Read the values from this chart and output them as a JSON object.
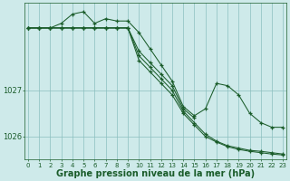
{
  "background_color": "#ceeaea",
  "plot_bg_color": "#ceeaea",
  "grid_color": "#8bbfbf",
  "line_color": "#1a5c2a",
  "x_min": 0,
  "x_max": 23,
  "y_min": 1025.5,
  "y_max": 1028.9,
  "yticks": [
    1026,
    1027
  ],
  "xlabel": "Graphe pression niveau de la mer (hPa)",
  "xlabel_fontsize": 7.0,
  "xtick_fontsize": 5.0,
  "ytick_fontsize": 6.0,
  "series1_x": [
    0,
    1,
    2,
    3,
    4,
    5,
    6,
    7,
    8,
    9,
    10,
    11,
    12,
    13,
    14,
    15,
    16,
    17,
    18,
    19,
    20,
    21,
    22,
    23
  ],
  "series1_y": [
    1028.35,
    1028.35,
    1028.35,
    1028.45,
    1028.65,
    1028.7,
    1028.45,
    1028.55,
    1028.5,
    1028.5,
    1028.25,
    1027.9,
    1027.55,
    1027.2,
    1026.65,
    1026.45,
    1026.6,
    1027.15,
    1027.1,
    1026.9,
    1026.5,
    1026.3,
    1026.2,
    1026.2
  ],
  "series2_x": [
    0,
    1,
    2,
    3,
    4,
    5,
    6,
    7,
    8,
    9,
    10,
    11,
    12,
    13,
    14,
    15
  ],
  "series2_y": [
    1028.35,
    1028.35,
    1028.35,
    1028.35,
    1028.35,
    1028.35,
    1028.35,
    1028.35,
    1028.35,
    1028.35,
    1027.85,
    1027.6,
    1027.35,
    1027.1,
    1026.6,
    1026.4
  ],
  "series3_x": [
    0,
    1,
    2,
    3,
    4,
    5,
    6,
    7,
    8,
    9,
    10,
    11,
    12,
    13,
    14,
    15,
    16,
    17,
    18,
    19,
    20,
    21,
    22,
    23
  ],
  "series3_y": [
    1028.35,
    1028.35,
    1028.35,
    1028.35,
    1028.35,
    1028.35,
    1028.35,
    1028.35,
    1028.35,
    1028.35,
    1027.75,
    1027.5,
    1027.25,
    1027.0,
    1026.55,
    1026.3,
    1026.05,
    1025.9,
    1025.8,
    1025.75,
    1025.7,
    1025.68,
    1025.65,
    1025.62
  ],
  "series4_x": [
    0,
    1,
    2,
    3,
    4,
    5,
    6,
    7,
    8,
    9,
    10,
    11,
    12,
    13,
    14,
    15,
    16,
    17,
    18,
    19,
    20,
    21,
    22,
    23
  ],
  "series4_y": [
    1028.35,
    1028.35,
    1028.35,
    1028.35,
    1028.35,
    1028.35,
    1028.35,
    1028.35,
    1028.35,
    1028.35,
    1027.65,
    1027.4,
    1027.15,
    1026.9,
    1026.5,
    1026.25,
    1026.0,
    1025.88,
    1025.78,
    1025.72,
    1025.68,
    1025.65,
    1025.62,
    1025.6
  ]
}
